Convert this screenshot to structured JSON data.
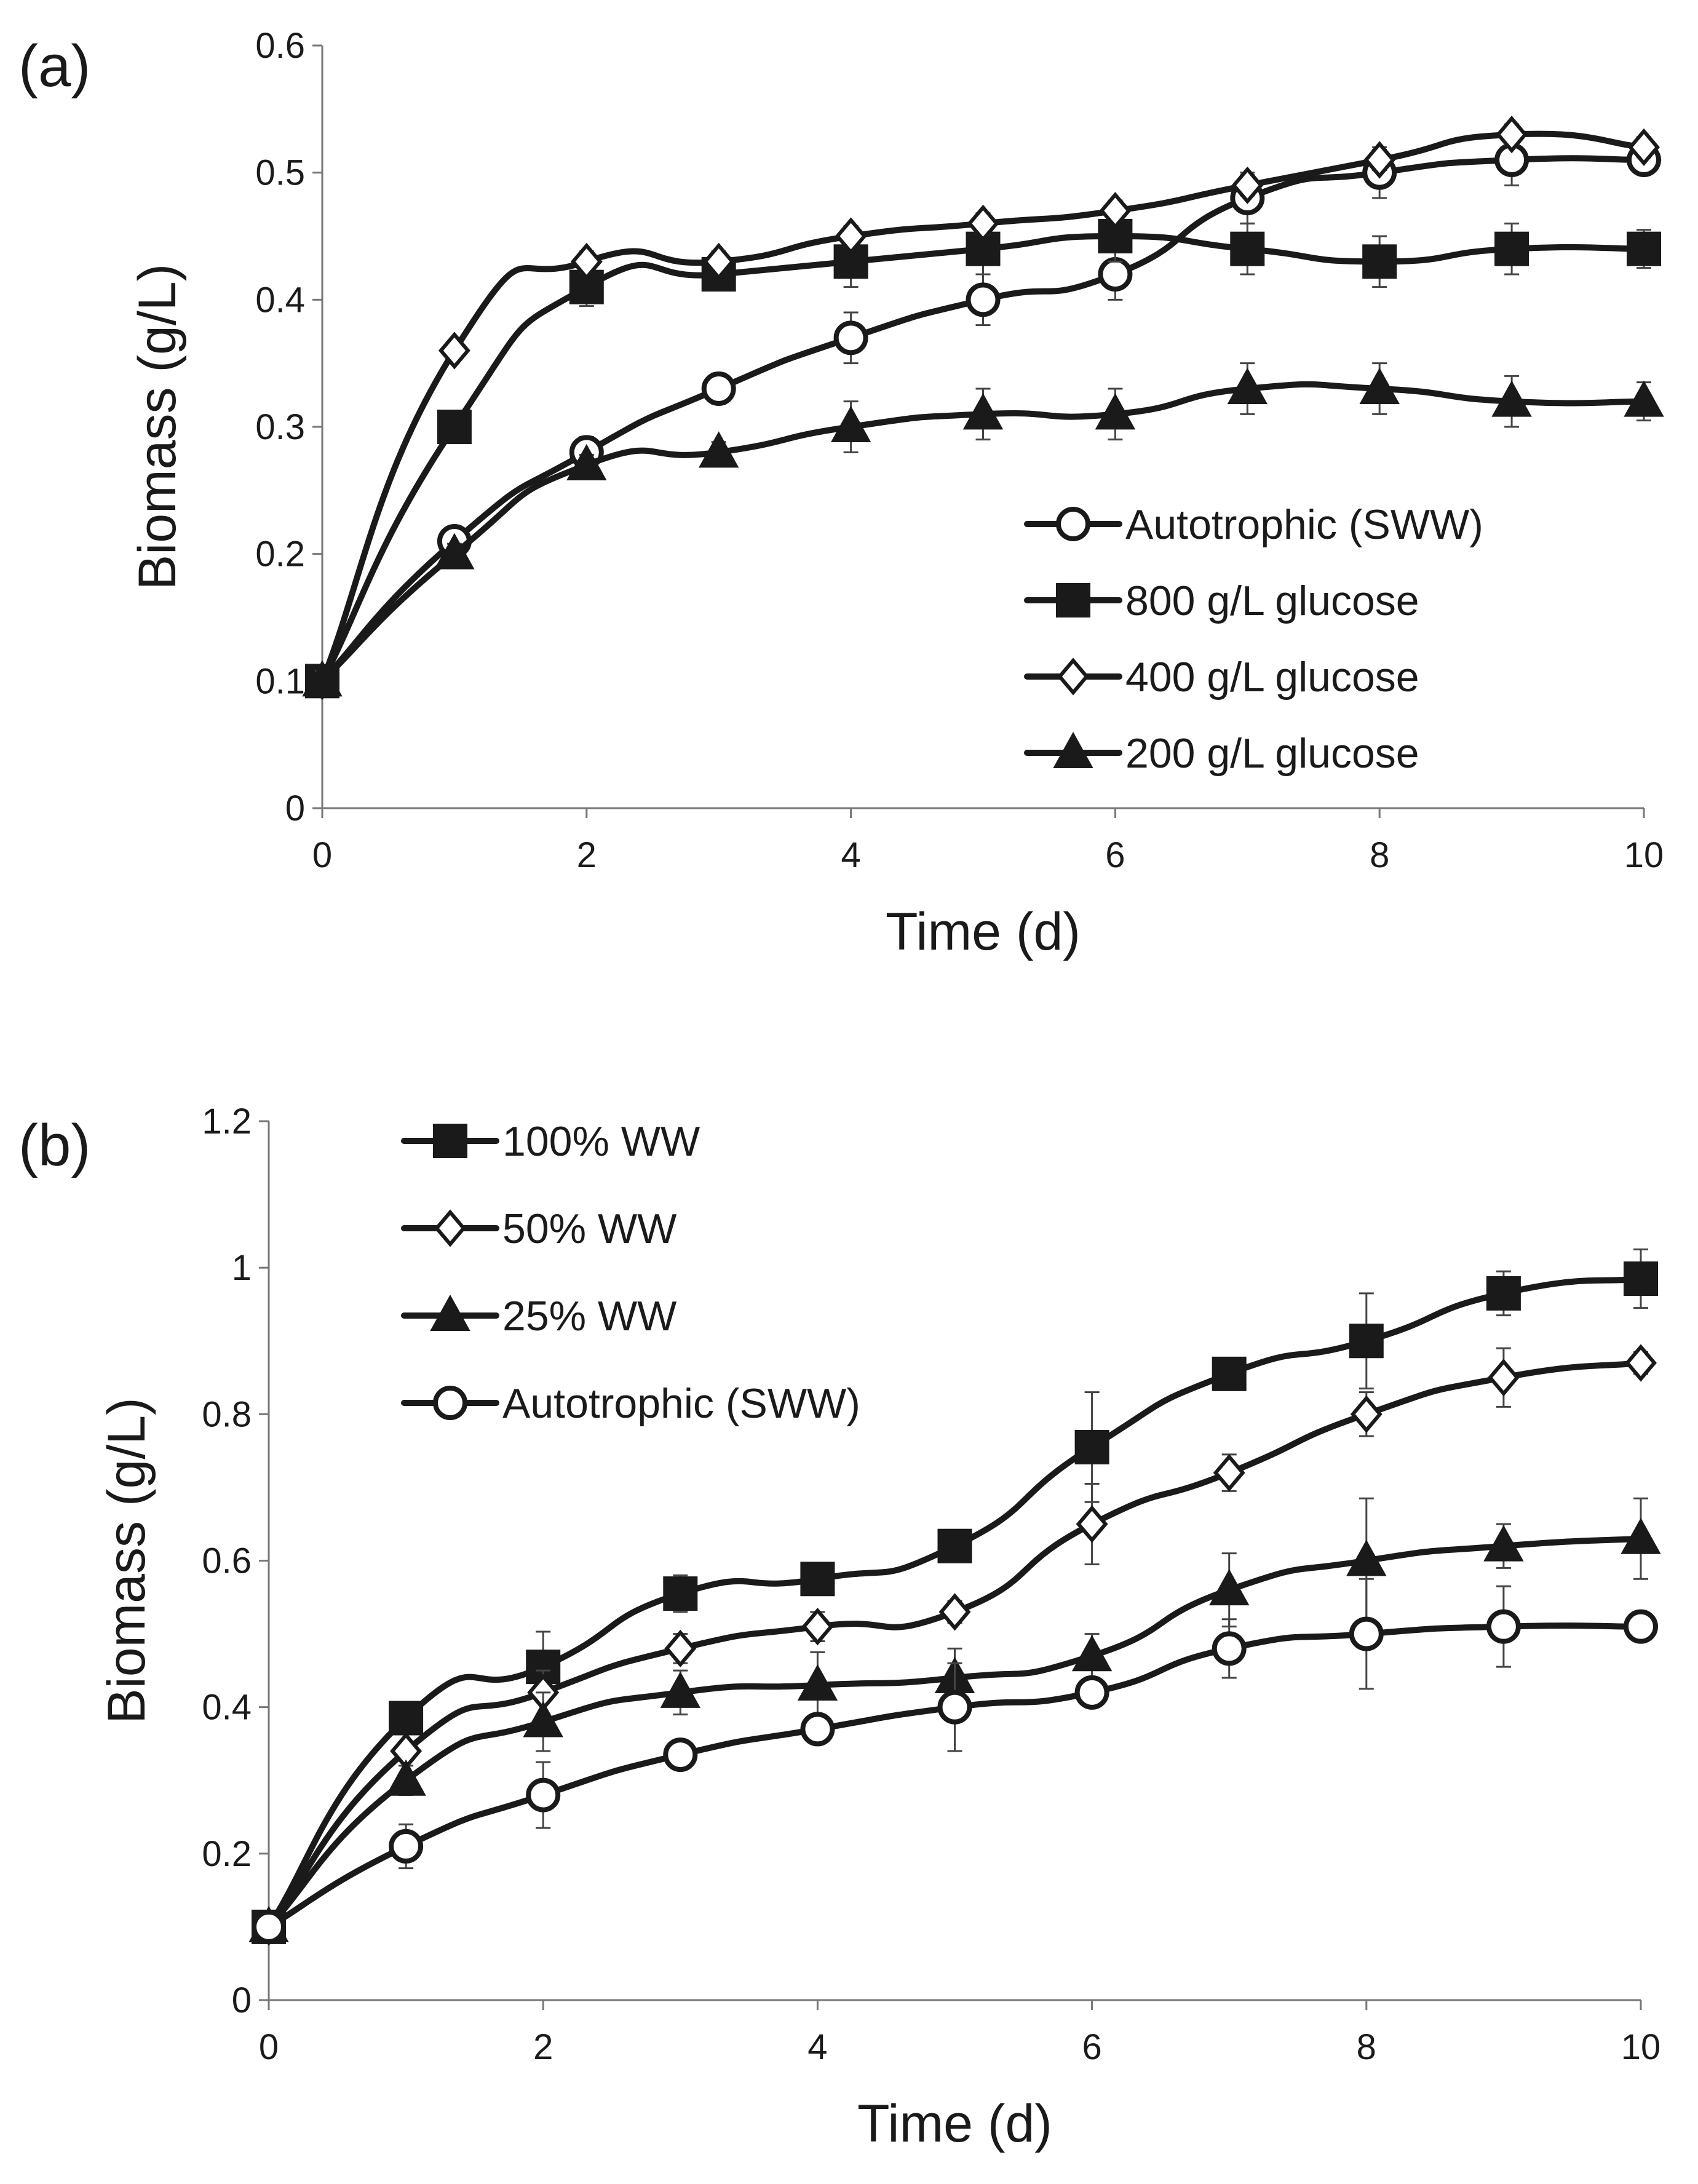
{
  "chart_data": [
    {
      "type": "line",
      "panel_label": "(a)",
      "xlabel": "Time (d)",
      "ylabel": "Biomass (g/L)",
      "xlim": [
        0,
        10
      ],
      "ylim": [
        0,
        0.6
      ],
      "xticks": [
        0,
        2,
        4,
        6,
        8,
        10
      ],
      "xtick_labels": [
        "0",
        "2",
        "4",
        "6",
        "8",
        "10"
      ],
      "yticks": [
        0,
        0.1,
        0.2,
        0.3,
        0.4,
        0.5,
        0.6
      ],
      "ytick_labels": [
        "0",
        "0.1",
        "0.2",
        "0.3",
        "0.4",
        "0.5",
        "0.6"
      ],
      "grid": false,
      "legend_position": "bottom-right",
      "x": [
        0,
        1,
        2,
        3,
        4,
        5,
        6,
        7,
        8,
        9,
        10
      ],
      "series": [
        {
          "name": "Autotrophic (SWW)",
          "marker": "circle-open",
          "values": [
            0.1,
            0.21,
            0.28,
            0.33,
            0.37,
            0.4,
            0.42,
            0.48,
            0.5,
            0.51,
            0.51
          ],
          "errors": [
            0.008,
            0.01,
            0.012,
            0.012,
            0.02,
            0.02,
            0.02,
            0.02,
            0.02,
            0.02,
            0.01
          ]
        },
        {
          "name": "800 g/L glucose",
          "marker": "square-filled",
          "values": [
            0.1,
            0.3,
            0.41,
            0.42,
            0.43,
            0.44,
            0.45,
            0.44,
            0.43,
            0.44,
            0.44
          ],
          "errors": [
            0.008,
            0.008,
            0.015,
            0.012,
            0.02,
            0.02,
            0.02,
            0.02,
            0.02,
            0.02,
            0.015
          ]
        },
        {
          "name": "400 g/L glucose",
          "marker": "diamond-open",
          "values": [
            0.1,
            0.36,
            0.43,
            0.43,
            0.45,
            0.46,
            0.47,
            0.49,
            0.51,
            0.53,
            0.52
          ],
          "errors": [
            0.008,
            0.005,
            0.008,
            0.008,
            0.008,
            0.008,
            0.008,
            0.008,
            0.008,
            0.008,
            0.008
          ]
        },
        {
          "name": "200 g/L glucose",
          "marker": "triangle-filled",
          "values": [
            0.1,
            0.2,
            0.27,
            0.28,
            0.3,
            0.31,
            0.31,
            0.33,
            0.33,
            0.32,
            0.32
          ],
          "errors": [
            0.008,
            0.008,
            0.008,
            0.008,
            0.02,
            0.02,
            0.02,
            0.02,
            0.02,
            0.02,
            0.015
          ]
        }
      ]
    },
    {
      "type": "line",
      "panel_label": "(b)",
      "xlabel": "Time (d)",
      "ylabel": "Biomass (g/L)",
      "xlim": [
        0,
        10
      ],
      "ylim": [
        0,
        1.2
      ],
      "xticks": [
        0,
        2,
        4,
        6,
        8,
        10
      ],
      "xtick_labels": [
        "0",
        "2",
        "4",
        "6",
        "8",
        "10"
      ],
      "yticks": [
        0,
        0.2,
        0.4,
        0.6,
        0.8,
        1.0,
        1.2
      ],
      "ytick_labels": [
        "0",
        "0.2",
        "0.4",
        "0.6",
        "0.8",
        "1",
        "1.2"
      ],
      "grid": false,
      "legend_position": "top-left",
      "x": [
        0,
        1,
        2,
        3,
        4,
        5,
        6,
        7,
        8,
        9,
        10
      ],
      "series": [
        {
          "name": "100% WW",
          "marker": "square-filled",
          "values": [
            0.1,
            0.385,
            0.455,
            0.555,
            0.575,
            0.62,
            0.755,
            0.855,
            0.9,
            0.965,
            0.985
          ],
          "errors": [
            0.01,
            0.01,
            0.048,
            0.025,
            0.015,
            0.015,
            0.075,
            0.02,
            0.065,
            0.03,
            0.04
          ]
        },
        {
          "name": "50% WW",
          "marker": "diamond-open",
          "values": [
            0.1,
            0.34,
            0.42,
            0.48,
            0.51,
            0.53,
            0.65,
            0.72,
            0.8,
            0.85,
            0.87
          ],
          "errors": [
            0.01,
            0.01,
            0.03,
            0.02,
            0.02,
            0.015,
            0.055,
            0.025,
            0.03,
            0.04,
            0.015
          ]
        },
        {
          "name": "25% WW",
          "marker": "triangle-filled",
          "values": [
            0.1,
            0.3,
            0.38,
            0.42,
            0.43,
            0.44,
            0.47,
            0.56,
            0.6,
            0.62,
            0.63
          ],
          "errors": [
            0.01,
            0.02,
            0.04,
            0.03,
            0.045,
            0.04,
            0.03,
            0.05,
            0.085,
            0.03,
            0.055
          ]
        },
        {
          "name": "Autotrophic (SWW)",
          "marker": "circle-open",
          "values": [
            0.1,
            0.21,
            0.28,
            0.335,
            0.37,
            0.4,
            0.42,
            0.48,
            0.5,
            0.51,
            0.51
          ],
          "errors": [
            0.01,
            0.03,
            0.045,
            0.015,
            0.02,
            0.06,
            0.02,
            0.04,
            0.075,
            0.055,
            0.01
          ]
        }
      ]
    }
  ]
}
